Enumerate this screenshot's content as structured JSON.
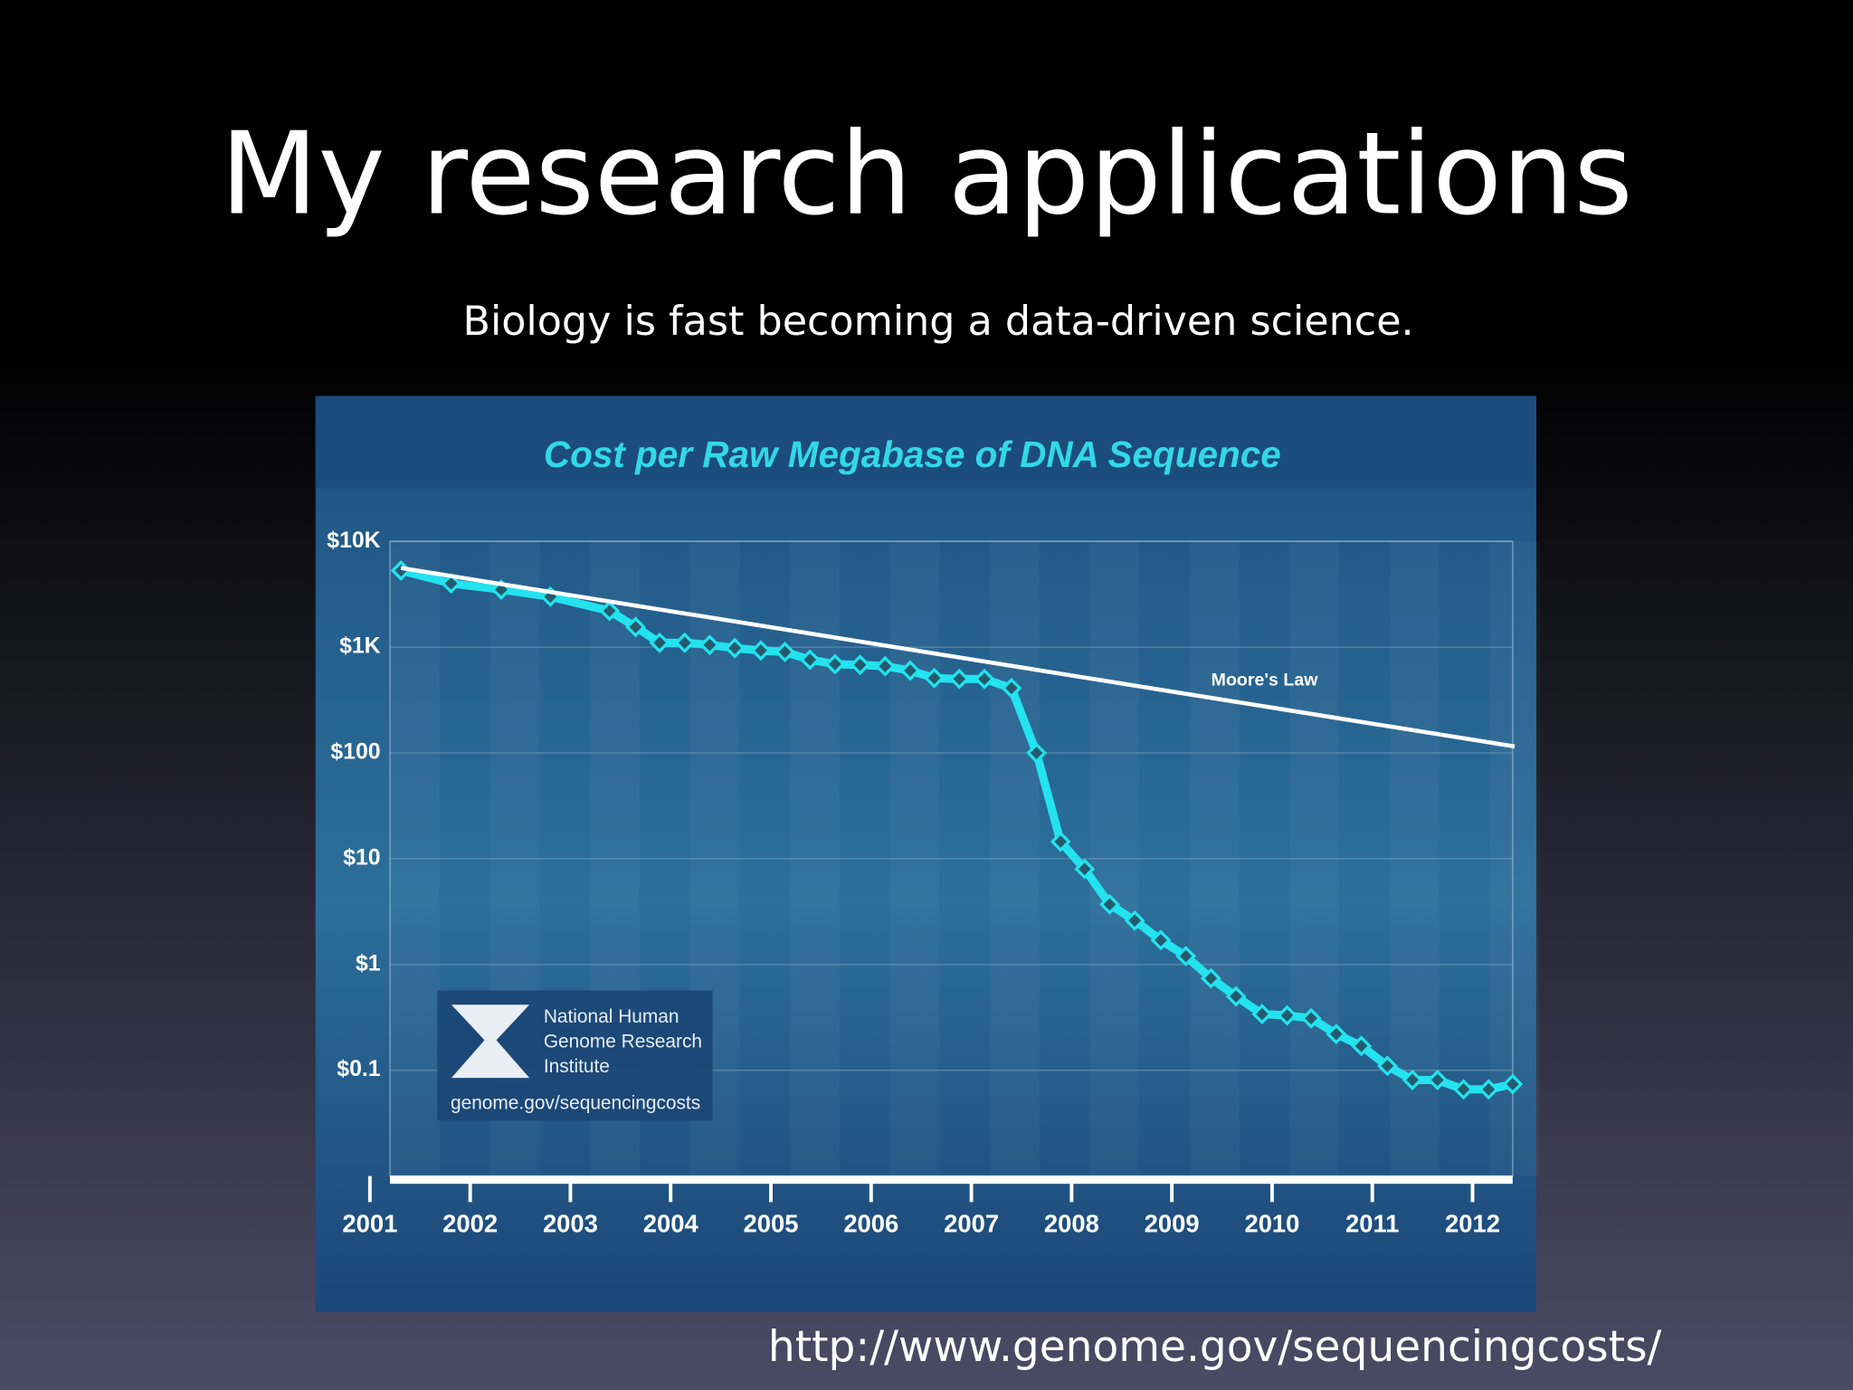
{
  "slide": {
    "title": "My research applications",
    "subtitle": "Biology is fast becoming a data-driven science.",
    "url": "http://www.genome.gov/sequencingcosts/"
  },
  "chart_data": {
    "type": "line",
    "title": "Cost per Raw Megabase of DNA Sequence",
    "x": [
      2001.31,
      2001.81,
      2002.31,
      2002.8,
      2003.39,
      2003.65,
      2003.89,
      2004.14,
      2004.39,
      2004.64,
      2004.9,
      2005.14,
      2005.39,
      2005.64,
      2005.89,
      2006.14,
      2006.39,
      2006.63,
      2006.88,
      2007.13,
      2007.4,
      2007.65,
      2007.89,
      2008.13,
      2008.38,
      2008.63,
      2008.89,
      2009.14,
      2009.39,
      2009.64,
      2009.9,
      2010.15,
      2010.39,
      2010.64,
      2010.89,
      2011.15,
      2011.4,
      2011.65,
      2011.91,
      2012.16,
      2012.4
    ],
    "series": [
      {
        "color": "#22e3ee",
        "values": [
          5300,
          4000,
          3500,
          3000,
          2200,
          1550,
          1100,
          1100,
          1050,
          980,
          930,
          900,
          760,
          690,
          680,
          660,
          600,
          510,
          500,
          500,
          410,
          100,
          14.5,
          8,
          3.7,
          2.6,
          1.7,
          1.2,
          0.74,
          0.5,
          0.34,
          0.33,
          0.31,
          0.22,
          0.17,
          0.11,
          0.081,
          0.081,
          0.066,
          0.066,
          0.074
        ]
      },
      {
        "name": "Moore's Law",
        "color": "#ffffff",
        "x": [
          2001.31,
          2012.42
        ],
        "values": [
          5600,
          115
        ]
      }
    ],
    "log_scale_y": true,
    "ylim": [
      0.01,
      10000
    ],
    "yticks": [
      {
        "value": 10000,
        "label": "$10K"
      },
      {
        "value": 1000,
        "label": "$1K"
      },
      {
        "value": 100,
        "label": "$100"
      },
      {
        "value": 10,
        "label": "$10"
      },
      {
        "value": 1,
        "label": "$1"
      },
      {
        "value": 0.1,
        "label": "$0.1"
      }
    ],
    "xlim": [
      2001.2,
      2012.4
    ],
    "xticks": [
      2001,
      2002,
      2003,
      2004,
      2005,
      2006,
      2007,
      2008,
      2009,
      2010,
      2011,
      2012
    ],
    "grid": true,
    "source": {
      "lines": [
        "National Human",
        "Genome Research",
        "Institute"
      ],
      "url": "genome.gov/sequencingcosts"
    }
  }
}
